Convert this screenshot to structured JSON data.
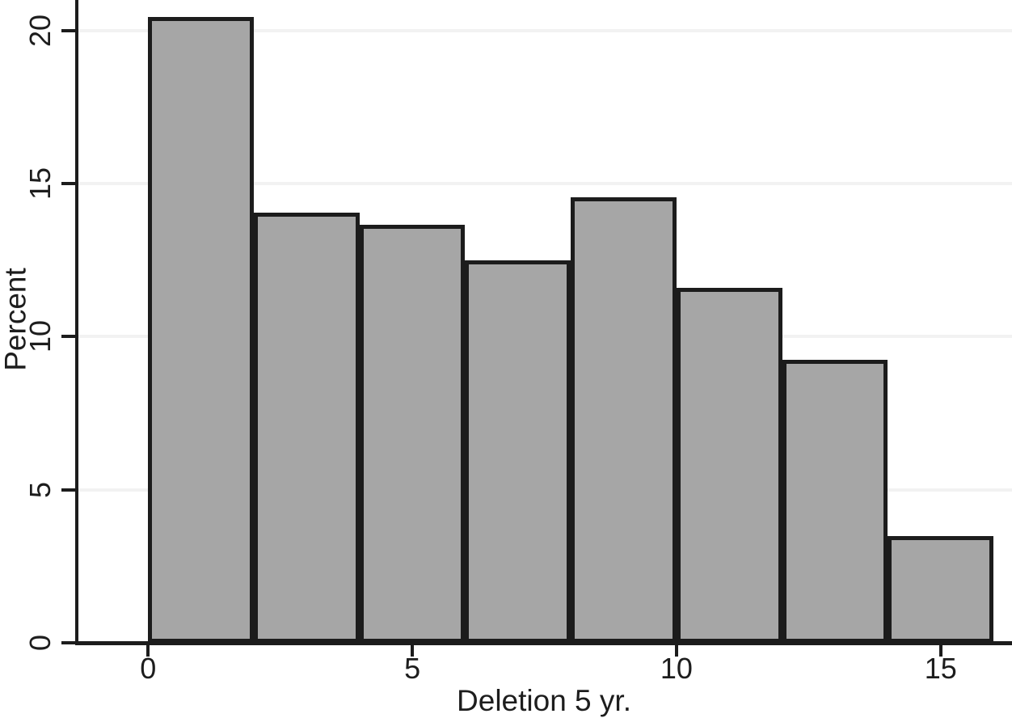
{
  "chart_data": {
    "type": "bar",
    "subtype": "histogram",
    "title": "",
    "xlabel": "Deletion 5 yr.",
    "ylabel": "Percent",
    "bin_width": 2,
    "bin_edges": [
      0,
      2,
      4,
      6,
      8,
      10,
      12,
      14,
      16
    ],
    "values": [
      20.45,
      14.05,
      13.65,
      12.5,
      14.55,
      11.6,
      9.25,
      3.5
    ],
    "x_ticks": [
      0,
      5,
      10,
      15
    ],
    "y_ticks": [
      0,
      5,
      10,
      15,
      20
    ],
    "xlim": [
      -1.35,
      16.35
    ],
    "ylim": [
      0,
      21.0
    ],
    "grid": "horizontal-only",
    "legend": "none",
    "colors": {
      "bar_fill": "#a6a6a6",
      "bar_border": "#1c1c1c",
      "grid_color": "#f2f2f2",
      "axis_color": "#1c1c1c",
      "text_color": "#1d1d1d",
      "background": "#ffffff"
    }
  }
}
